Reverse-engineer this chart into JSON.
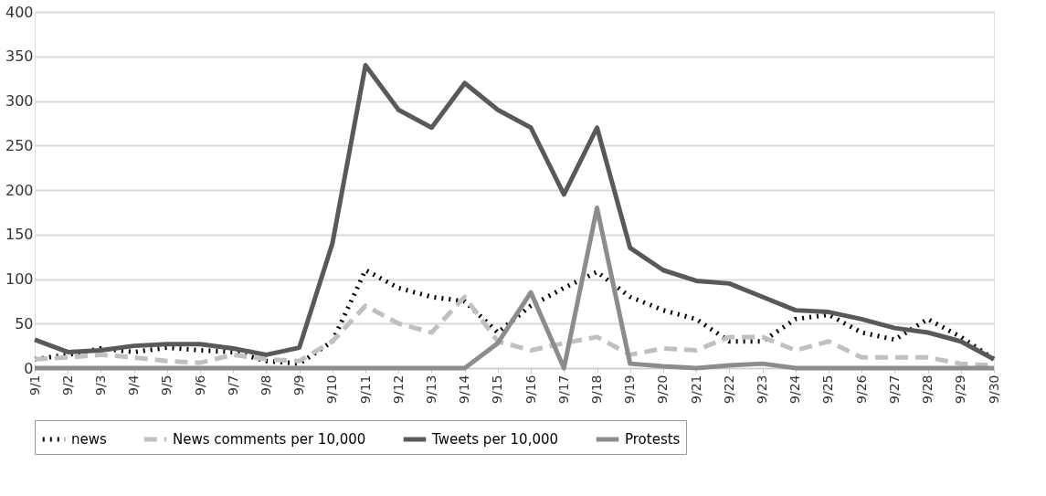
{
  "chart_data": {
    "type": "line",
    "categories": [
      "9/1",
      "9/2",
      "9/3",
      "9/4",
      "9/5",
      "9/6",
      "9/7",
      "9/8",
      "9/9",
      "9/10",
      "9/11",
      "9/12",
      "9/13",
      "9/14",
      "9/15",
      "9/16",
      "9/17",
      "9/18",
      "9/19",
      "9/20",
      "9/21",
      "9/22",
      "9/23",
      "9/24",
      "9/25",
      "9/26",
      "9/27",
      "9/28",
      "9/29",
      "9/30"
    ],
    "series": [
      {
        "name": "news",
        "color": "#000000",
        "line_style": "dotted",
        "values": [
          10,
          15,
          22,
          18,
          23,
          20,
          18,
          8,
          5,
          30,
          110,
          90,
          80,
          75,
          40,
          70,
          90,
          108,
          80,
          65,
          55,
          30,
          30,
          55,
          60,
          40,
          32,
          55,
          35,
          10
        ]
      },
      {
        "name": "News comments per 10,000",
        "color": "#c0c0c0",
        "line_style": "dashed",
        "values": [
          10,
          12,
          15,
          12,
          8,
          6,
          15,
          10,
          8,
          30,
          70,
          50,
          40,
          80,
          30,
          20,
          28,
          35,
          15,
          22,
          20,
          35,
          35,
          20,
          30,
          12,
          12,
          12,
          5,
          3
        ]
      },
      {
        "name": "Tweets per 10,000",
        "color": "#595959",
        "line_style": "solid",
        "values": [
          32,
          18,
          20,
          25,
          27,
          27,
          22,
          15,
          23,
          140,
          340,
          290,
          270,
          320,
          290,
          270,
          195,
          270,
          135,
          110,
          98,
          95,
          80,
          65,
          63,
          55,
          45,
          40,
          30,
          10
        ]
      },
      {
        "name": "Protests",
        "color": "#8c8c8c",
        "line_style": "solid",
        "values": [
          0,
          0,
          0,
          0,
          0,
          0,
          0,
          0,
          0,
          0,
          0,
          0,
          0,
          0,
          28,
          85,
          0,
          180,
          5,
          2,
          0,
          3,
          5,
          0,
          0,
          0,
          0,
          0,
          0,
          0
        ]
      }
    ],
    "ylim": [
      0,
      400
    ],
    "yticks": [
      0,
      50,
      100,
      150,
      200,
      250,
      300,
      350,
      400
    ],
    "grid": "y",
    "legend": "bottom"
  }
}
